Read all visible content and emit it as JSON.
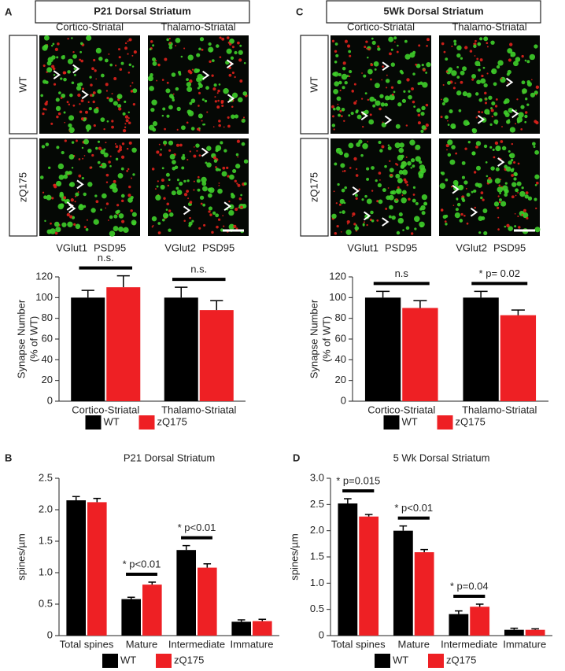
{
  "figure": {
    "panels": [
      {
        "letter": "A",
        "title": "P21 Dorsal Striatum",
        "columns": [
          "Cortico-Striatal",
          "Thalamo-Striatal"
        ],
        "rows": [
          "WT",
          "zQ175"
        ],
        "stains": [
          [
            "VGlut1",
            "PSD95"
          ],
          [
            "VGlut2",
            "PSD95"
          ]
        ]
      },
      {
        "letter": "C",
        "title": "5Wk Dorsal Striatum",
        "columns": [
          "Cortico-Striatal",
          "Thalamo-Striatal"
        ],
        "rows": [
          "WT",
          "zQ175"
        ],
        "stains": [
          [
            "VGlut1",
            "PSD95"
          ],
          [
            "VGlut2",
            "PSD95"
          ]
        ]
      }
    ]
  },
  "chart_data": [
    {
      "type": "bar",
      "categories": [
        "Cortico-Striatal",
        "Thalamo-Striatal"
      ],
      "series": [
        {
          "name": "WT",
          "color": "#000000",
          "values": [
            100,
            100
          ],
          "errors": [
            7,
            10
          ]
        },
        {
          "name": "zQ175",
          "color": "#ee2024",
          "values": [
            110,
            88
          ],
          "errors": [
            11,
            9
          ]
        }
      ],
      "ylabel": [
        "Synapse Number",
        "(% of WT)"
      ],
      "ylim": [
        0,
        120
      ],
      "yticks": [
        0,
        20,
        40,
        60,
        80,
        100,
        120
      ],
      "annotations": [
        "n.s.",
        "n.s."
      ]
    },
    {
      "type": "bar",
      "categories": [
        "Cortico-Striatal",
        "Thalamo-Striatal"
      ],
      "series": [
        {
          "name": "WT",
          "color": "#000000",
          "values": [
            100,
            100
          ],
          "errors": [
            6,
            6
          ]
        },
        {
          "name": "zQ175",
          "color": "#ee2024",
          "values": [
            90,
            83
          ],
          "errors": [
            7,
            5
          ]
        }
      ],
      "ylabel": [
        "Synapse Number",
        "(% of WT)"
      ],
      "ylim": [
        0,
        120
      ],
      "yticks": [
        0,
        20,
        40,
        60,
        80,
        100,
        120
      ],
      "annotations": [
        "n.s",
        "* p= 0.02"
      ]
    },
    {
      "type": "bar",
      "panel": "B",
      "title": "P21 Dorsal Striatum",
      "categories": [
        "Total spines",
        "Mature",
        "Intermediate",
        "Immature"
      ],
      "series": [
        {
          "name": "WT",
          "color": "#000000",
          "values": [
            2.15,
            0.58,
            1.36,
            0.22
          ],
          "errors": [
            0.06,
            0.03,
            0.07,
            0.03
          ]
        },
        {
          "name": "zQ175",
          "color": "#ee2024",
          "values": [
            2.12,
            0.81,
            1.08,
            0.23
          ],
          "errors": [
            0.06,
            0.04,
            0.06,
            0.03
          ]
        }
      ],
      "ylabel": [
        "spines/µm"
      ],
      "ylim": [
        0,
        2.5
      ],
      "yticks": [
        0,
        0.5,
        {
          "value": 1,
          "label": "1.0"
        },
        1.5,
        {
          "value": 2,
          "label": "2.0"
        },
        2.5
      ],
      "annotations": [
        null,
        "* p<0.01",
        "* p<0.01",
        null
      ]
    },
    {
      "type": "bar",
      "panel": "D",
      "title": "5 Wk Dorsal Striatum",
      "categories": [
        "Total spines",
        "Mature",
        "Intermediate",
        "Immature"
      ],
      "series": [
        {
          "name": "WT",
          "color": "#000000",
          "values": [
            2.52,
            2.0,
            0.41,
            0.11
          ],
          "errors": [
            0.09,
            0.09,
            0.06,
            0.03
          ]
        },
        {
          "name": "zQ175",
          "color": "#ee2024",
          "values": [
            2.27,
            1.59,
            0.55,
            0.11
          ],
          "errors": [
            0.04,
            0.05,
            0.05,
            0.02
          ]
        }
      ],
      "ylabel": [
        "spines/µm"
      ],
      "ylim": [
        0,
        3
      ],
      "yticks": [
        0,
        0.5,
        {
          "value": 1,
          "label": "1.0"
        },
        1.5,
        {
          "value": 2,
          "label": "2.0"
        },
        2.5,
        {
          "value": 3,
          "label": "3.0"
        }
      ],
      "annotations": [
        "* p=0.015",
        "* p<0.01",
        "* p=0.04",
        null
      ]
    }
  ]
}
